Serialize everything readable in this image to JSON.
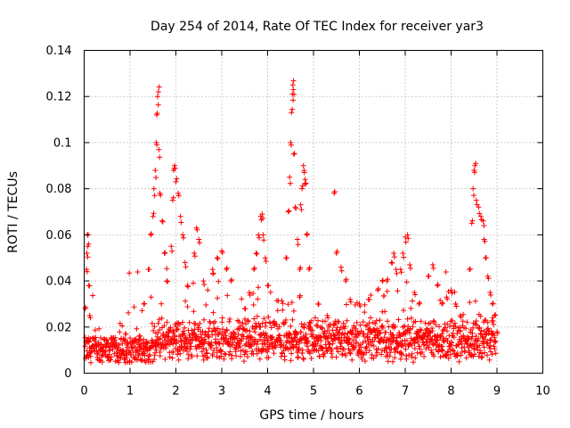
{
  "chart_data": {
    "type": "scatter",
    "title": "Day 254 of 2014, Rate Of TEC Index for receiver yar3",
    "xlabel": "GPS time / hours",
    "ylabel": "ROTI / TECUs",
    "xlim": [
      0,
      10
    ],
    "ylim": [
      0,
      0.14
    ],
    "xticks": [
      0,
      1,
      2,
      3,
      4,
      5,
      6,
      7,
      8,
      9,
      10
    ],
    "yticks": [
      0,
      0.02,
      0.04,
      0.06,
      0.08,
      0.1,
      0.12,
      0.14
    ],
    "ytick_labels": [
      "0",
      "0.02",
      "0.04",
      "0.06",
      "0.08",
      "0.1",
      "0.12",
      "0.14"
    ],
    "grid": true,
    "marker": "+",
    "colors": {
      "points": "#ff0000",
      "grid": "#a0a0a0",
      "axes": "#000000"
    },
    "series": [
      {
        "name": "ROTI",
        "points": [
          [
            0.02,
            0.028
          ],
          [
            0.05,
            0.045
          ],
          [
            0.06,
            0.052
          ],
          [
            0.07,
            0.06
          ],
          [
            0.08,
            0.055
          ],
          [
            0.1,
            0.038
          ],
          [
            0.12,
            0.025
          ],
          [
            0.9,
            0.017
          ],
          [
            1.2,
            0.016
          ],
          [
            1.3,
            0.03
          ],
          [
            1.4,
            0.045
          ],
          [
            1.45,
            0.06
          ],
          [
            1.5,
            0.068
          ],
          [
            1.52,
            0.08
          ],
          [
            1.55,
            0.088
          ],
          [
            1.57,
            0.1
          ],
          [
            1.58,
            0.112
          ],
          [
            1.6,
            0.12
          ],
          [
            1.62,
            0.122
          ],
          [
            1.63,
            0.097
          ],
          [
            1.65,
            0.078
          ],
          [
            1.7,
            0.066
          ],
          [
            1.75,
            0.052
          ],
          [
            1.8,
            0.04
          ],
          [
            1.9,
            0.055
          ],
          [
            1.93,
            0.075
          ],
          [
            1.95,
            0.088
          ],
          [
            1.97,
            0.09
          ],
          [
            2.0,
            0.083
          ],
          [
            2.05,
            0.078
          ],
          [
            2.1,
            0.068
          ],
          [
            2.15,
            0.06
          ],
          [
            2.2,
            0.048
          ],
          [
            2.25,
            0.038
          ],
          [
            2.4,
            0.052
          ],
          [
            2.45,
            0.063
          ],
          [
            2.5,
            0.058
          ],
          [
            2.6,
            0.04
          ],
          [
            2.8,
            0.045
          ],
          [
            2.9,
            0.05
          ],
          [
            3.0,
            0.053
          ],
          [
            3.1,
            0.045
          ],
          [
            3.2,
            0.04
          ],
          [
            3.5,
            0.028
          ],
          [
            3.6,
            0.035
          ],
          [
            3.7,
            0.045
          ],
          [
            3.75,
            0.052
          ],
          [
            3.8,
            0.06
          ],
          [
            3.85,
            0.068
          ],
          [
            3.88,
            0.069
          ],
          [
            3.9,
            0.06
          ],
          [
            3.95,
            0.05
          ],
          [
            4.0,
            0.038
          ],
          [
            4.4,
            0.05
          ],
          [
            4.45,
            0.07
          ],
          [
            4.48,
            0.085
          ],
          [
            4.5,
            0.1
          ],
          [
            4.52,
            0.113
          ],
          [
            4.54,
            0.121
          ],
          [
            4.55,
            0.125
          ],
          [
            4.56,
            0.123
          ],
          [
            4.57,
            0.095
          ],
          [
            4.6,
            0.072
          ],
          [
            4.65,
            0.058
          ],
          [
            4.7,
            0.045
          ],
          [
            4.72,
            0.073
          ],
          [
            4.75,
            0.08
          ],
          [
            4.78,
            0.09
          ],
          [
            4.8,
            0.087
          ],
          [
            4.82,
            0.082
          ],
          [
            4.85,
            0.06
          ],
          [
            4.9,
            0.045
          ],
          [
            5.1,
            0.03
          ],
          [
            5.3,
            0.025
          ],
          [
            5.45,
            0.078
          ],
          [
            5.5,
            0.052
          ],
          [
            5.6,
            0.046
          ],
          [
            5.7,
            0.04
          ],
          [
            5.8,
            0.032
          ],
          [
            6.0,
            0.03
          ],
          [
            6.2,
            0.032
          ],
          [
            6.4,
            0.036
          ],
          [
            6.5,
            0.04
          ],
          [
            6.6,
            0.04
          ],
          [
            6.7,
            0.048
          ],
          [
            6.75,
            0.052
          ],
          [
            6.8,
            0.045
          ],
          [
            6.9,
            0.045
          ],
          [
            6.95,
            0.052
          ],
          [
            7.0,
            0.059
          ],
          [
            7.05,
            0.06
          ],
          [
            7.1,
            0.047
          ],
          [
            7.2,
            0.035
          ],
          [
            7.3,
            0.03
          ],
          [
            7.5,
            0.042
          ],
          [
            7.6,
            0.047
          ],
          [
            7.7,
            0.038
          ],
          [
            7.8,
            0.03
          ],
          [
            7.9,
            0.033
          ],
          [
            8.0,
            0.036
          ],
          [
            8.1,
            0.03
          ],
          [
            8.2,
            0.025
          ],
          [
            8.4,
            0.045
          ],
          [
            8.45,
            0.065
          ],
          [
            8.48,
            0.08
          ],
          [
            8.5,
            0.088
          ],
          [
            8.52,
            0.09
          ],
          [
            8.55,
            0.075
          ],
          [
            8.6,
            0.072
          ],
          [
            8.65,
            0.068
          ],
          [
            8.7,
            0.066
          ],
          [
            8.72,
            0.058
          ],
          [
            8.75,
            0.05
          ],
          [
            8.8,
            0.042
          ],
          [
            8.85,
            0.035
          ],
          [
            8.9,
            0.03
          ],
          [
            8.95,
            0.025
          ],
          [
            9.0,
            0.018
          ]
        ]
      }
    ],
    "baseline_note": "Dense background of points for 0 to 9 h mostly between 0.003 and 0.02 TECU"
  }
}
